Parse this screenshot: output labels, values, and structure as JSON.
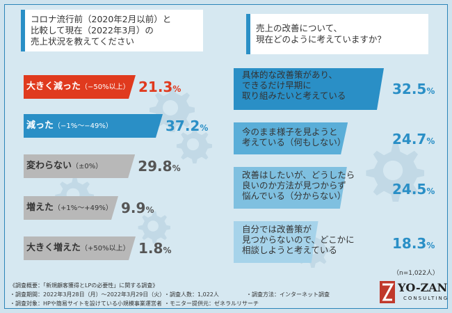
{
  "left": {
    "question": [
      "コロナ流行前（2020年2月以前）と",
      "比較して現在（2022年3月）の",
      "売上状況を教えてください"
    ]
  },
  "right": {
    "question": [
      "売上の改善について、",
      "現在どのように考えていますか？"
    ],
    "sample": "（n=1,022人）"
  },
  "footer": {
    "overview": "《調査概要：「新規顧客獲得とLPの必要性」に関する調査》",
    "period": "・調査期間：2022年3月28日（月）〜2022年3月29日（火）",
    "target": "・調査対象：HPや簡易サイトを設けている小規模事業運営者",
    "count": "・調査人数：1,022人",
    "method": "・調査方法：インターネット調査",
    "provider": "・モニター提供元：ゼネラルリサーチ"
  },
  "logo": {
    "name": "YO-ZAN",
    "sub": "CONSULTING"
  },
  "colors": {
    "red": "#e03a1e",
    "blue": "#2a8fc6",
    "gray": "#b8b8b8",
    "light_blue": "#6fb8dc"
  },
  "chart_data": [
    {
      "type": "bar",
      "title": "コロナ流行前（2020年2月以前）と比較して現在（2022年3月）の売上状況を教えてください",
      "categories": [
        {
          "main": "大きく減った",
          "sub": "（−50%以上）"
        },
        {
          "main": "減った",
          "sub": "（−1%〜−49%）"
        },
        {
          "main": "変わらない",
          "sub": "（±0%）"
        },
        {
          "main": "増えた",
          "sub": "（+1%〜+49%）"
        },
        {
          "main": "大きく増えた",
          "sub": "（+50%以上）"
        }
      ],
      "values": [
        21.3,
        37.2,
        29.8,
        9.9,
        1.8
      ],
      "value_labels": [
        "21.3",
        "37.2",
        "29.8",
        "9.9",
        "1.8"
      ],
      "unit": "%"
    },
    {
      "type": "bar",
      "title": "売上の改善について、現在どのように考えていますか？",
      "categories": [
        {
          "lines": [
            "具体的な改善策があり、",
            "できるだけ早期に",
            "取り組みたいと考えている"
          ]
        },
        {
          "lines": [
            "今のまま様子を見ようと",
            "考えている（何もしない）"
          ]
        },
        {
          "lines": [
            "改善はしたいが、どうしたら",
            "良いのか方法が見つからず",
            "悩んでいる（分からない）"
          ]
        },
        {
          "lines": [
            "自分では改善策が",
            "見つからないので、どこかに",
            "相談しようと考えている"
          ]
        }
      ],
      "values": [
        32.5,
        24.7,
        24.5,
        18.3
      ],
      "value_labels": [
        "32.5",
        "24.7",
        "24.5",
        "18.3"
      ],
      "unit": "%"
    }
  ]
}
